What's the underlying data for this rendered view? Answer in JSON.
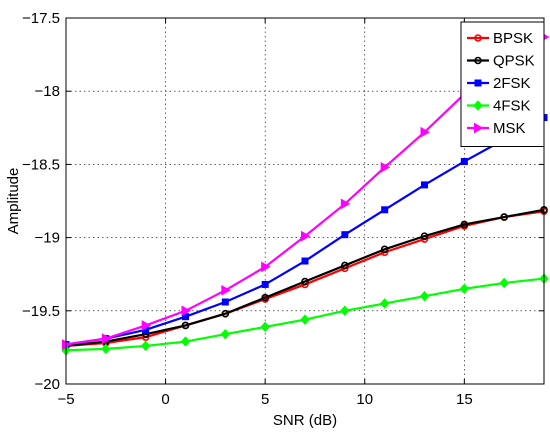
{
  "chart_data": {
    "type": "line",
    "xlabel": "SNR (dB)",
    "ylabel": "Amplitude",
    "xlim": [
      -5,
      19
    ],
    "ylim": [
      -20,
      -17.5
    ],
    "xticks": [
      -5,
      0,
      5,
      10,
      15
    ],
    "yticks": [
      -20,
      -19.5,
      -19,
      -18.5,
      -18,
      -17.5
    ],
    "xtick_labels": [
      "−5",
      "0",
      "5",
      "10",
      "15"
    ],
    "ytick_labels": [
      "−20",
      "−19.5",
      "−19",
      "−18.5",
      "−18",
      "−17.5"
    ],
    "grid": true,
    "legend_position": "top-right",
    "series": [
      {
        "name": "BPSK",
        "color": "#ff0000",
        "marker": "circle",
        "x": [
          -5,
          -3,
          -1,
          1,
          3,
          5,
          7,
          9,
          11,
          13,
          15,
          17,
          19
        ],
        "y": [
          -19.74,
          -19.72,
          -19.68,
          -19.6,
          -19.52,
          -19.42,
          -19.32,
          -19.21,
          -19.1,
          -19.01,
          -18.92,
          -18.86,
          -18.82
        ]
      },
      {
        "name": "QPSK",
        "color": "#000000",
        "marker": "circle",
        "x": [
          -5,
          -3,
          -1,
          1,
          3,
          5,
          7,
          9,
          11,
          13,
          15,
          17,
          19
        ],
        "y": [
          -19.74,
          -19.71,
          -19.66,
          -19.6,
          -19.52,
          -19.41,
          -19.3,
          -19.19,
          -19.08,
          -18.99,
          -18.91,
          -18.86,
          -18.81
        ]
      },
      {
        "name": "2FSK",
        "color": "#0000ff",
        "marker": "square",
        "x": [
          -5,
          -3,
          -1,
          1,
          3,
          5,
          7,
          9,
          11,
          13,
          15,
          17,
          19
        ],
        "y": [
          -19.73,
          -19.69,
          -19.63,
          -19.54,
          -19.44,
          -19.32,
          -19.16,
          -18.98,
          -18.81,
          -18.64,
          -18.48,
          -18.33,
          -18.18
        ]
      },
      {
        "name": "4FSK",
        "color": "#00ff00",
        "marker": "diamond",
        "x": [
          -5,
          -3,
          -1,
          1,
          3,
          5,
          7,
          9,
          11,
          13,
          15,
          17,
          19
        ],
        "y": [
          -19.77,
          -19.76,
          -19.74,
          -19.71,
          -19.66,
          -19.61,
          -19.56,
          -19.5,
          -19.45,
          -19.4,
          -19.35,
          -19.31,
          -19.28
        ]
      },
      {
        "name": "MSK",
        "color": "#ff00ff",
        "marker": "triangle-right",
        "x": [
          -5,
          -3,
          -1,
          1,
          3,
          5,
          7,
          9,
          11,
          13,
          15,
          17,
          19
        ],
        "y": [
          -19.73,
          -19.69,
          -19.6,
          -19.5,
          -19.36,
          -19.2,
          -18.99,
          -18.77,
          -18.52,
          -18.28,
          -18.02,
          -17.82,
          -17.63
        ]
      }
    ]
  }
}
